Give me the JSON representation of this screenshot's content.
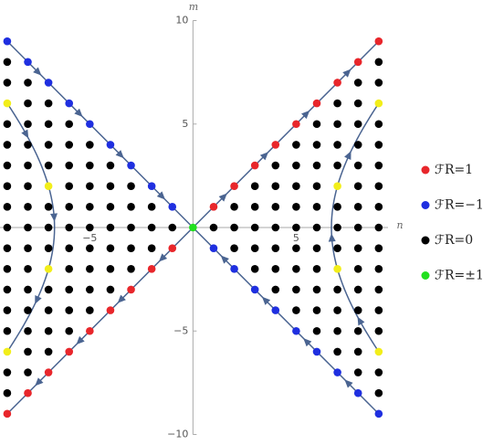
{
  "chart_data": {
    "type": "scatter",
    "x_label": "n",
    "y_label": "m",
    "xlim": [
      -9.35,
      9.45
    ],
    "ylim": [
      -10,
      10
    ],
    "xticks": [
      {
        "value": -5,
        "label": "−5"
      },
      5
    ],
    "yticks": [
      {
        "value": -10,
        "label": "−10"
      },
      {
        "value": -5,
        "label": "−5"
      },
      5,
      10
    ],
    "legend": "right",
    "series": [
      {
        "name": "ℱR=1",
        "color": "#e8262b",
        "x": [
          -9,
          -8,
          -7,
          -6,
          -5,
          -4,
          -3,
          -2,
          -1,
          1,
          2,
          3,
          4,
          5,
          6,
          7,
          8,
          9
        ],
        "y": [
          -9,
          -8,
          -7,
          -6,
          -5,
          -4,
          -3,
          -2,
          -1,
          1,
          2,
          3,
          4,
          5,
          6,
          7,
          8,
          9
        ]
      },
      {
        "name": "ℱR=−1",
        "color": "#1f2fe0",
        "x": [
          -9,
          -8,
          -7,
          -6,
          -5,
          -4,
          -3,
          -2,
          -1,
          1,
          2,
          3,
          4,
          5,
          6,
          7,
          8,
          9
        ],
        "y": [
          9,
          8,
          7,
          6,
          5,
          4,
          3,
          2,
          1,
          -1,
          -2,
          -3,
          -4,
          -5,
          -6,
          -7,
          -8,
          -9
        ]
      },
      {
        "name": "ℱR=0",
        "color": "#000000",
        "x": [
          -9,
          9,
          -9,
          -8,
          8,
          9,
          -8,
          -7,
          7,
          8,
          -9,
          -8,
          -7,
          -6,
          6,
          7,
          8,
          9,
          -9,
          -8,
          -7,
          -6,
          -5,
          5,
          6,
          7,
          8,
          9,
          -9,
          -8,
          -7,
          -6,
          -5,
          -4,
          4,
          5,
          6,
          7,
          8,
          9,
          -9,
          -8,
          -6,
          -5,
          -4,
          -3,
          3,
          4,
          5,
          6,
          8,
          9,
          -9,
          -8,
          -7,
          -6,
          -5,
          -4,
          -3,
          -2,
          2,
          3,
          4,
          5,
          6,
          7,
          8,
          9,
          -9,
          -8,
          -7,
          -6,
          -5,
          -4,
          -3,
          -2,
          -1,
          1,
          2,
          3,
          4,
          5,
          6,
          7,
          8,
          9,
          -9,
          -8,
          -7,
          -6,
          -5,
          -4,
          -3,
          -2,
          2,
          3,
          4,
          5,
          6,
          7,
          8,
          9,
          -9,
          -8,
          -6,
          -5,
          -4,
          -3,
          3,
          4,
          5,
          6,
          8,
          9,
          -9,
          -8,
          -7,
          -6,
          -5,
          -4,
          4,
          5,
          6,
          7,
          8,
          9,
          -9,
          -8,
          -7,
          -6,
          -5,
          5,
          6,
          7,
          8,
          9,
          -9,
          -8,
          -7,
          -6,
          6,
          7,
          8,
          9,
          -8,
          -7,
          7,
          8,
          -9,
          -8,
          8,
          9,
          -9,
          9
        ],
        "y": [
          8,
          8,
          7,
          7,
          7,
          7,
          6,
          6,
          6,
          6,
          5,
          5,
          5,
          5,
          5,
          5,
          5,
          5,
          4,
          4,
          4,
          4,
          4,
          4,
          4,
          4,
          4,
          4,
          3,
          3,
          3,
          3,
          3,
          3,
          3,
          3,
          3,
          3,
          3,
          3,
          2,
          2,
          2,
          2,
          2,
          2,
          2,
          2,
          2,
          2,
          2,
          2,
          1,
          1,
          1,
          1,
          1,
          1,
          1,
          1,
          1,
          1,
          1,
          1,
          1,
          1,
          1,
          1,
          0,
          0,
          0,
          0,
          0,
          0,
          0,
          0,
          0,
          0,
          0,
          0,
          0,
          0,
          0,
          0,
          0,
          0,
          -1,
          -1,
          -1,
          -1,
          -1,
          -1,
          -1,
          -1,
          -1,
          -1,
          -1,
          -1,
          -1,
          -1,
          -1,
          -1,
          -2,
          -2,
          -2,
          -2,
          -2,
          -2,
          -2,
          -2,
          -2,
          -2,
          -2,
          -2,
          -3,
          -3,
          -3,
          -3,
          -3,
          -3,
          -3,
          -3,
          -3,
          -3,
          -3,
          -3,
          -4,
          -4,
          -4,
          -4,
          -4,
          -4,
          -4,
          -4,
          -4,
          -4,
          -5,
          -5,
          -5,
          -5,
          -5,
          -5,
          -5,
          -5,
          -6,
          -6,
          -6,
          -6,
          -7,
          -7,
          -7,
          -7,
          -8,
          -8
        ]
      },
      {
        "name": "ℱR=±1",
        "color": "#22e01f",
        "x": [
          0
        ],
        "y": [
          0
        ]
      },
      {
        "color": "#f2ee1a",
        "x": [
          -9,
          -7,
          -7,
          -9,
          9,
          7,
          7,
          9
        ],
        "y": [
          6,
          2,
          -2,
          -6,
          6,
          2,
          -2,
          -6
        ]
      }
    ]
  }
}
